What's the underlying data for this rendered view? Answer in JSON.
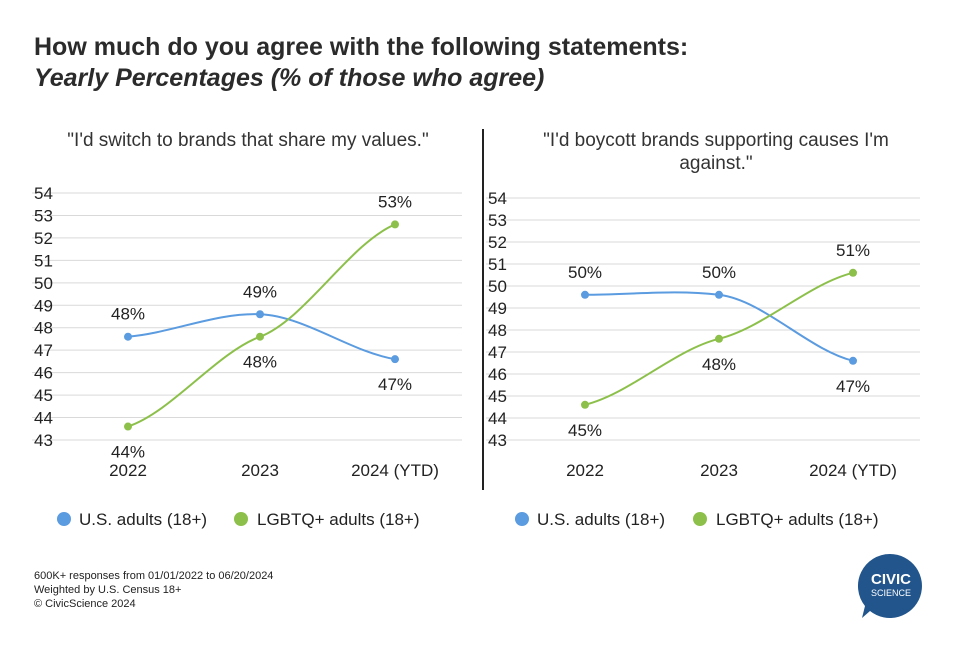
{
  "header": {
    "title": "How much do you agree with the following statements:",
    "subtitle": "Yearly Percentages (% of those who agree)"
  },
  "colors": {
    "us": "#5b9be0",
    "lgbtq": "#8cc04a",
    "grid": "#d9d9d9",
    "logo": "#21558c"
  },
  "chart_data": [
    {
      "type": "line",
      "title": "\"I'd switch to brands that share my values.\"",
      "categories": [
        "2022",
        "2023",
        "2024 (YTD)"
      ],
      "ylim": [
        43,
        54
      ],
      "yticks": [
        "54",
        "53",
        "52",
        "51",
        "50",
        "49",
        "48",
        "47",
        "46",
        "45",
        "44",
        "43"
      ],
      "grid": true,
      "legend_placement": "bottom",
      "series": [
        {
          "name": "U.S. adults (18+)",
          "values": [
            47.6,
            48.6,
            46.6
          ],
          "labels": [
            "48%",
            "49%",
            "47%"
          ]
        },
        {
          "name": "LGBTQ+ adults (18+)",
          "values": [
            43.6,
            47.6,
            52.6
          ],
          "labels": [
            "44%",
            "48%",
            "53%"
          ]
        }
      ]
    },
    {
      "type": "line",
      "title": "\"I'd boycott brands supporting causes I'm against.\"",
      "title_lines": [
        "\"I'd boycott brands supporting causes I'm",
        "against.\""
      ],
      "categories": [
        "2022",
        "2023",
        "2024 (YTD)"
      ],
      "ylim": [
        43,
        54
      ],
      "yticks": [
        "54",
        "53",
        "52",
        "51",
        "50",
        "49",
        "48",
        "47",
        "46",
        "45",
        "44",
        "43"
      ],
      "grid": true,
      "legend_placement": "bottom",
      "series": [
        {
          "name": "U.S. adults (18+)",
          "values": [
            49.6,
            49.6,
            46.6
          ],
          "labels": [
            "50%",
            "50%",
            "47%"
          ]
        },
        {
          "name": "LGBTQ+ adults (18+)",
          "values": [
            44.6,
            47.6,
            50.6
          ],
          "labels": [
            "45%",
            "48%",
            "51%"
          ]
        }
      ]
    }
  ],
  "footer": {
    "line1": "600K+ responses from 01/01/2022 to 06/20/2024",
    "line2": "Weighted by U.S. Census 18+",
    "line3": "© CivicScience 2024"
  },
  "logo": {
    "line1": "CIVIC",
    "line2": "SCIENCE"
  }
}
